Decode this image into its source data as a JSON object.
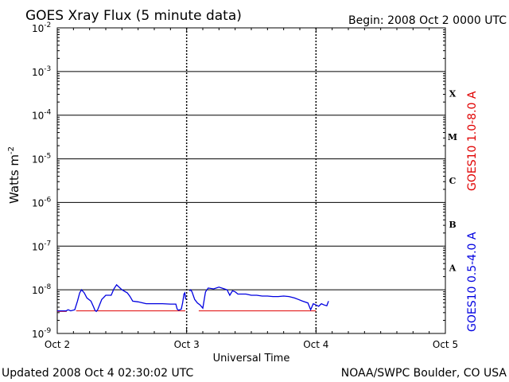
{
  "chart_data": {
    "type": "line",
    "title": "GOES Xray Flux (5 minute data)",
    "begin_label": "Begin:  2008 Oct 2 0000 UTC",
    "xlabel": "Universal Time",
    "ylabel_main": "Watts m",
    "ylabel_exp": "-2",
    "updated_label": "Updated 2008 Oct  4 02:30:02 UTC",
    "source_label": "NOAA/SWPC Boulder, CO USA",
    "y_scale": "log",
    "ylim": [
      1e-09,
      0.01
    ],
    "xlim": [
      "2008-10-02T00:00",
      "2008-10-05T00:00"
    ],
    "grid": true,
    "x_ticks": [
      "Oct 2",
      "Oct 3",
      "Oct 4",
      "Oct 5"
    ],
    "y_ticks": [
      {
        "base": "10",
        "exp": "-2",
        "value": 0.01
      },
      {
        "base": "10",
        "exp": "-3",
        "value": 0.001
      },
      {
        "base": "10",
        "exp": "-4",
        "value": 0.0001
      },
      {
        "base": "10",
        "exp": "-5",
        "value": 1e-05
      },
      {
        "base": "10",
        "exp": "-6",
        "value": 1e-06
      },
      {
        "base": "10",
        "exp": "-7",
        "value": 1e-07
      },
      {
        "base": "10",
        "exp": "-8",
        "value": 1e-08
      },
      {
        "base": "10",
        "exp": "-9",
        "value": 1e-09
      }
    ],
    "flare_classes": [
      {
        "label": "X",
        "value": 0.000316
      },
      {
        "label": "M",
        "value": 3.16e-05
      },
      {
        "label": "C",
        "value": 3.16e-06
      },
      {
        "label": "B",
        "value": 3.16e-07
      },
      {
        "label": "A",
        "value": 3.16e-08
      }
    ],
    "series": [
      {
        "name": "GOES10 1.0-8.0 A",
        "color": "#e00000",
        "segments": [
          {
            "x": [
              "2008-10-02T00:00",
              "2008-10-02T01:45"
            ],
            "y": [
              3.2e-09,
              3.2e-09
            ]
          },
          {
            "x": [
              "2008-10-02T03:30",
              "2008-10-02T23:45"
            ],
            "y": [
              3.3e-09,
              3.3e-09
            ]
          },
          {
            "x": [
              "2008-10-03T02:15",
              "2008-10-04T00:00"
            ],
            "y": [
              3.3e-09,
              3.3e-09
            ]
          }
        ]
      },
      {
        "name": "GOES10 0.5-4.0 A",
        "color": "#0000e0",
        "segments": [
          {
            "x": [
              "2008-10-02T00:00",
              "2008-10-02T01:15",
              "2008-10-02T01:30",
              "2008-10-02T01:40",
              "2008-10-02T02:00",
              "2008-10-02T02:30",
              "2008-10-02T03:15",
              "2008-10-02T03:45",
              "2008-10-02T04:10",
              "2008-10-02T04:30",
              "2008-10-02T05:00",
              "2008-10-02T05:30",
              "2008-10-02T06:15",
              "2008-10-02T06:45",
              "2008-10-02T07:00",
              "2008-10-02T07:15",
              "2008-10-02T07:30",
              "2008-10-02T08:15",
              "2008-10-02T09:00",
              "2008-10-02T10:00",
              "2008-10-02T10:30",
              "2008-10-02T11:00",
              "2008-10-02T12:00",
              "2008-10-02T13:00",
              "2008-10-02T13:30",
              "2008-10-02T14:00",
              "2008-10-02T15:00",
              "2008-10-02T16:30",
              "2008-10-02T18:00",
              "2008-10-02T19:30",
              "2008-10-02T21:00",
              "2008-10-02T22:00",
              "2008-10-02T22:15",
              "2008-10-02T22:30",
              "2008-10-02T23:00",
              "2008-10-02T23:15",
              "2008-10-02T23:30",
              "2008-10-02T23:40",
              "2008-10-02T23:50"
            ],
            "y": [
              3.3e-09,
              3.3e-09,
              3.3e-09,
              3.3e-09,
              3.5e-09,
              3.3e-09,
              3.5e-09,
              5.5e-09,
              8.5e-09,
              1e-08,
              8.5e-09,
              6.5e-09,
              5.5e-09,
              4e-09,
              3.4e-09,
              3.2e-09,
              3.5e-09,
              6e-09,
              7.5e-09,
              7.5e-09,
              1.05e-08,
              1.3e-08,
              1e-08,
              8.5e-09,
              7e-09,
              5.5e-09,
              5.3e-09,
              4.8e-09,
              4.8e-09,
              4.8e-09,
              4.7e-09,
              4.7e-09,
              3.6e-09,
              3.4e-09,
              3.6e-09,
              5e-09,
              8e-09,
              8.5e-09,
              6e-09
            ]
          },
          {
            "x": [
              "2008-10-03T00:30",
              "2008-10-03T00:45",
              "2008-10-03T01:00",
              "2008-10-03T01:30",
              "2008-10-03T02:00",
              "2008-10-03T02:30",
              "2008-10-03T03:00",
              "2008-10-03T03:30",
              "2008-10-03T04:00",
              "2008-10-03T05:00",
              "2008-10-03T06:00",
              "2008-10-03T07:00",
              "2008-10-03T07:30",
              "2008-10-03T08:00",
              "2008-10-03T08:30",
              "2008-10-03T09:00",
              "2008-10-03T09:30",
              "2008-10-03T10:00",
              "2008-10-03T11:00",
              "2008-10-03T12:00",
              "2008-10-03T13:00",
              "2008-10-03T14:00",
              "2008-10-03T15:00",
              "2008-10-03T16:00",
              "2008-10-03T17:00",
              "2008-10-03T18:00",
              "2008-10-03T19:00",
              "2008-10-03T20:00",
              "2008-10-03T20:45",
              "2008-10-03T21:30",
              "2008-10-03T22:30",
              "2008-10-03T23:00",
              "2008-10-03T23:30",
              "2008-10-04T00:00",
              "2008-10-04T00:30",
              "2008-10-04T01:00",
              "2008-10-04T01:30",
              "2008-10-04T02:00",
              "2008-10-04T02:20"
            ],
            "y": [
              9.5e-09,
              1e-08,
              9e-09,
              6e-09,
              5e-09,
              4.5e-09,
              3.8e-09,
              9e-09,
              1.1e-08,
              1.05e-08,
              1.15e-08,
              1.05e-08,
              1e-08,
              7.5e-09,
              9.5e-09,
              9e-09,
              8e-09,
              8e-09,
              8e-09,
              7.5e-09,
              7.5e-09,
              7.2e-09,
              7.2e-09,
              7e-09,
              7e-09,
              7.2e-09,
              7e-09,
              6.5e-09,
              6e-09,
              5.5e-09,
              5e-09,
              3.5e-09,
              4.8e-09,
              4.5e-09,
              4.2e-09,
              4.8e-09,
              4.5e-09,
              4.3e-09,
              5.5e-09
            ]
          }
        ]
      }
    ]
  }
}
